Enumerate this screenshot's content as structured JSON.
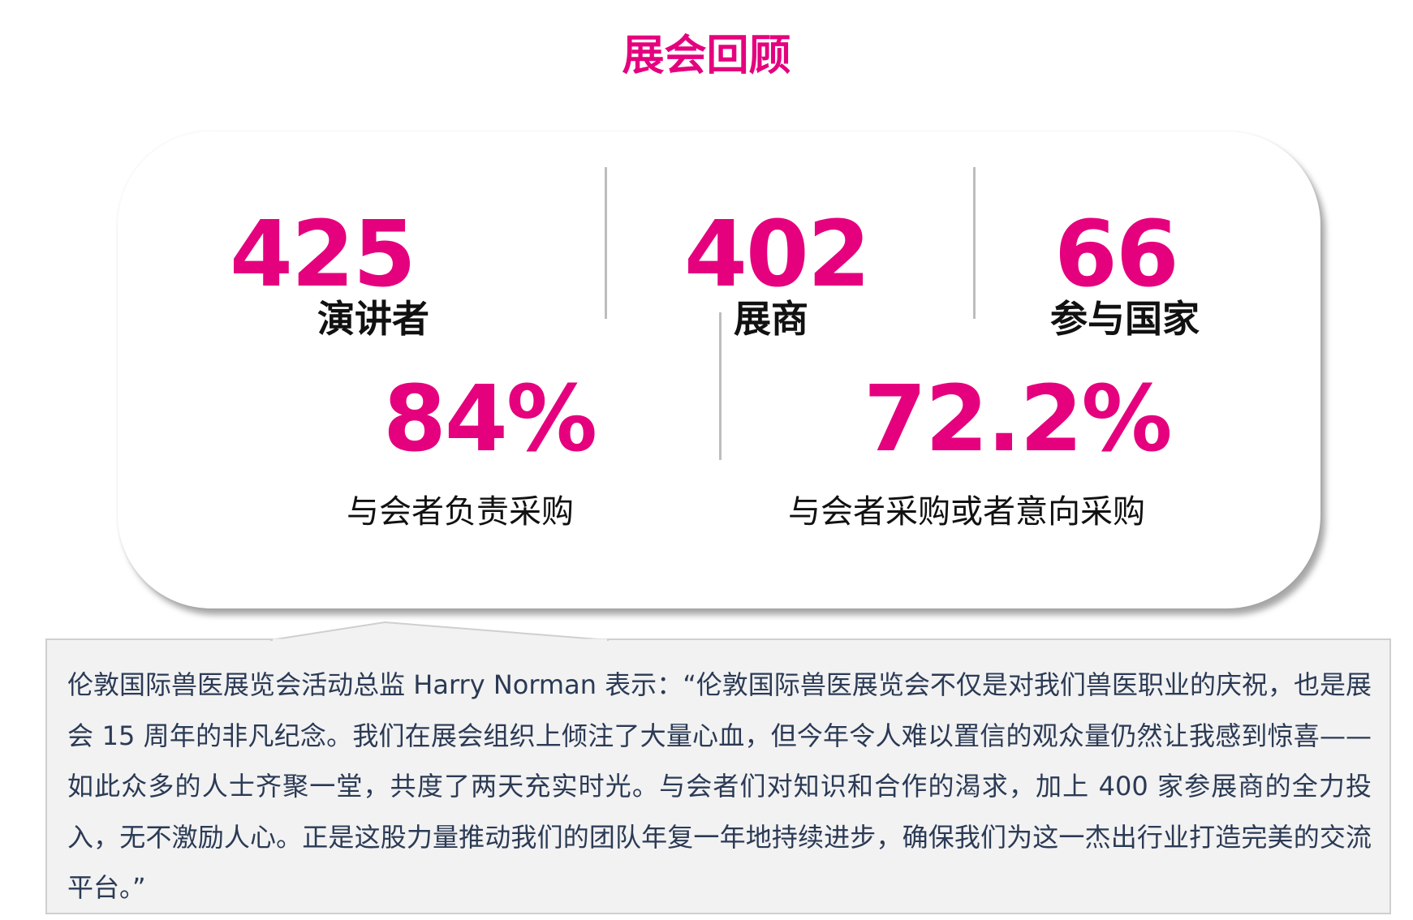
{
  "title": "展会回顾",
  "stats": [
    {
      "value": "425",
      "label": "演讲者"
    },
    {
      "value": "402",
      "label": "展商"
    },
    {
      "value": "66",
      "label": "参与国家"
    }
  ],
  "percents": [
    {
      "value": "84%",
      "label": "与会者负责采购"
    },
    {
      "value": "72.2%",
      "label": "与会者采购或者意向采购"
    }
  ],
  "quote": "伦敦国际兽医展览会活动总监 Harry Norman 表示：“伦敦国际兽医展览会不仅是对我们兽医职业的庆祝，也是展会 15 周年的非凡纪念。我们在展会组织上倾注了大量心血，但今年令人难以置信的观众量仍然让我感到惊喜——如此众多的人士齐聚一堂，共度了两天充实时光。与会者们对知识和合作的渴求，加上 400 家参展商的全力投入，无不激励人心。正是这股力量推动我们的团队年复一年地持续进步，确保我们为这一杰出行业打造完美的交流平台。”",
  "colors": {
    "accent": "#e5007e",
    "quote_bg": "#f2f2f2",
    "quote_text": "#2b3a55"
  }
}
